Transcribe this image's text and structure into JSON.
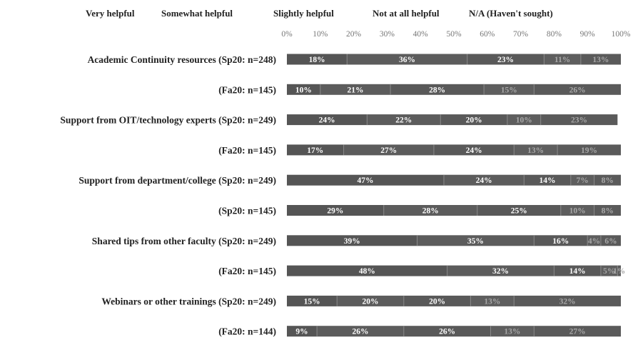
{
  "chart_data": {
    "type": "bar",
    "orientation": "horizontal",
    "stacked": true,
    "legend_position": "top",
    "x_ticks": [
      "0%",
      "10%",
      "20%",
      "30%",
      "40%",
      "50%",
      "60%",
      "70%",
      "80%",
      "90%",
      "100%"
    ],
    "xlim": [
      0,
      100
    ],
    "categories": [
      "Academic Continuity resources (Sp20: n=248)",
      "(Fa20: n=145)",
      "Support from OIT/technology experts (Sp20: n=249)",
      "(Fa20: n=145)",
      "Support from department/college (Sp20: n=249)",
      "(Sp20: n=145)",
      "Shared tips from other faculty (Sp20: n=249)",
      "(Fa20: n=145)",
      "Webinars or other trainings (Sp20: n=249)",
      "(Fa20: n=144)"
    ],
    "series": [
      {
        "name": "Very helpful",
        "color": "#555555",
        "text_color": "#ffffff",
        "values": [
          18,
          10,
          24,
          17,
          47,
          29,
          39,
          48,
          15,
          9
        ],
        "labels": [
          "18%",
          "10%",
          "24%",
          "17%",
          "47%",
          "29%",
          "39%",
          "48%",
          "15%",
          "9%"
        ]
      },
      {
        "name": "Somewhat helpful",
        "color": "#5c5c5c",
        "text_color": "#ffffff",
        "values": [
          36,
          21,
          22,
          27,
          24,
          28,
          35,
          32,
          20,
          26
        ],
        "labels": [
          "36%",
          "21%",
          "22%",
          "27%",
          "24%",
          "28%",
          "35%",
          "32%",
          "20%",
          "26%"
        ]
      },
      {
        "name": "Slightly helpful",
        "color": "#595959",
        "text_color": "#ffffff",
        "values": [
          23,
          28,
          20,
          24,
          14,
          25,
          16,
          14,
          20,
          26
        ],
        "labels": [
          "23%",
          "28%",
          "20%",
          "24%",
          "14%",
          "25%",
          "16%",
          "14%",
          "20%",
          "26%"
        ]
      },
      {
        "name": "Not at all helpful",
        "color": "#5e5e5e",
        "text_color": "#a8a8a8",
        "values": [
          11,
          15,
          10,
          13,
          7,
          10,
          4,
          5,
          13,
          13
        ],
        "labels": [
          "11%",
          "15%",
          "10%",
          "13%",
          "7%",
          "10%",
          "4%",
          "5%",
          "13%",
          "13%"
        ]
      },
      {
        "name": "N/A (Haven't sought)",
        "color": "#5a5a5a",
        "text_color": "#a8a8a8",
        "values": [
          13,
          26,
          23,
          19,
          8,
          8,
          6,
          1,
          32,
          27
        ],
        "labels": [
          "13%",
          "26%",
          "23%",
          "19%",
          "8%",
          "8%",
          "6%",
          "1%",
          "32%",
          "27%"
        ]
      }
    ]
  }
}
